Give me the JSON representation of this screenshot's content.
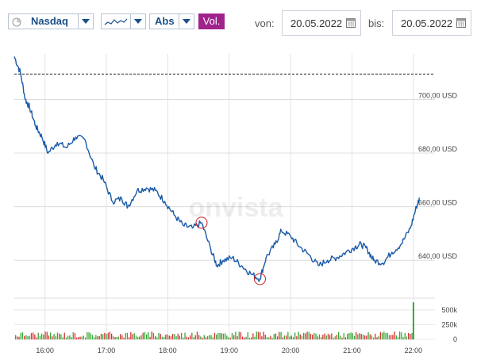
{
  "toolbar": {
    "index_label": "Nasdaq",
    "mode_label": "Abs",
    "vol_label": "Vol.",
    "from_label": "von:",
    "from_date": "20.05.2022",
    "to_label": "bis:",
    "to_date": "20.05.2022"
  },
  "watermark": "onvista",
  "colors": {
    "line": "#1a5aa8",
    "accent": "#a0238c",
    "marker": "#cc2222",
    "vol_up": "#3aa635",
    "vol_down": "#d33232"
  },
  "chart_data": {
    "type": "line",
    "x_ticks": [
      "16:00",
      "17:00",
      "18:00",
      "19:00",
      "20:00",
      "21:00",
      "22:00"
    ],
    "y_ticks": [
      "700,00 USD",
      "680,00 USD",
      "660,00 USD",
      "640,00 USD"
    ],
    "y_tick_values": [
      700,
      680,
      660,
      640
    ],
    "ylim": [
      630,
      717
    ],
    "prev_close": 709.5,
    "series": [
      {
        "values": [
          [
            15.5,
            716
          ],
          [
            15.6,
            710
          ],
          [
            15.68,
            700
          ],
          [
            15.75,
            697
          ],
          [
            15.85,
            690
          ],
          [
            15.95,
            686
          ],
          [
            16.05,
            680
          ],
          [
            16.2,
            684
          ],
          [
            16.35,
            682
          ],
          [
            16.5,
            686
          ],
          [
            16.65,
            685
          ],
          [
            16.8,
            675
          ],
          [
            16.95,
            670
          ],
          [
            17.1,
            662
          ],
          [
            17.25,
            663
          ],
          [
            17.35,
            660
          ],
          [
            17.5,
            666
          ],
          [
            17.65,
            667
          ],
          [
            17.8,
            666
          ],
          [
            17.95,
            662
          ],
          [
            18.1,
            657
          ],
          [
            18.25,
            653
          ],
          [
            18.4,
            652
          ],
          [
            18.55,
            654
          ],
          [
            18.7,
            644
          ],
          [
            18.8,
            638
          ],
          [
            18.9,
            640
          ],
          [
            19.05,
            641
          ],
          [
            19.2,
            638
          ],
          [
            19.35,
            635
          ],
          [
            19.5,
            633
          ],
          [
            19.6,
            641
          ],
          [
            19.75,
            646
          ],
          [
            19.85,
            651
          ],
          [
            20.0,
            649
          ],
          [
            20.15,
            645
          ],
          [
            20.3,
            642
          ],
          [
            20.45,
            638
          ],
          [
            20.6,
            640
          ],
          [
            20.75,
            641
          ],
          [
            20.9,
            643
          ],
          [
            21.05,
            645
          ],
          [
            21.15,
            646
          ],
          [
            21.25,
            644
          ],
          [
            21.35,
            640
          ],
          [
            21.5,
            639
          ],
          [
            21.65,
            643
          ],
          [
            21.8,
            646
          ],
          [
            21.95,
            652
          ],
          [
            22.05,
            660
          ],
          [
            22.1,
            663
          ]
        ]
      }
    ],
    "volume": {
      "y_ticks": [
        "500k",
        "250k",
        "0"
      ],
      "y_tick_values": [
        500000,
        250000,
        0
      ],
      "ylim": [
        0,
        700000
      ],
      "spike": [
        22.0,
        630000
      ]
    },
    "markers": [
      [
        18.55,
        654
      ],
      [
        19.5,
        633
      ]
    ]
  }
}
